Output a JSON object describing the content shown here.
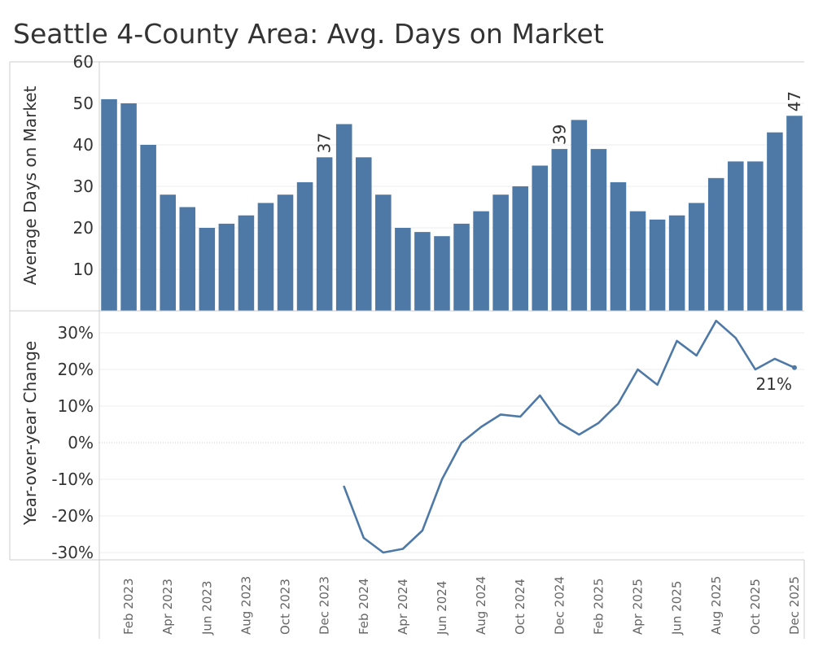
{
  "title": "Seattle 4-County Area: Avg. Days on Market",
  "colors": {
    "bar": "#4e79a7",
    "line": "#4e79a7",
    "grid": "#eeeeee",
    "axis": "#cccccc",
    "text": "#333333"
  },
  "chart_data": [
    {
      "type": "bar",
      "title": "Seattle 4-County Area: Avg. Days on Market",
      "ylabel": "Average Days on Market",
      "ylim": [
        0,
        60
      ],
      "yticks": [
        10,
        20,
        30,
        40,
        50,
        60
      ],
      "categories": [
        "Jan 2023",
        "Feb 2023",
        "Mar 2023",
        "Apr 2023",
        "May 2023",
        "Jun 2023",
        "Jul 2023",
        "Aug 2023",
        "Sep 2023",
        "Oct 2023",
        "Nov 2023",
        "Dec 2023",
        "Jan 2024",
        "Feb 2024",
        "Mar 2024",
        "Apr 2024",
        "May 2024",
        "Jun 2024",
        "Jul 2024",
        "Aug 2024",
        "Sep 2024",
        "Oct 2024",
        "Nov 2024",
        "Dec 2024",
        "Jan 2025",
        "Feb 2025",
        "Mar 2025",
        "Apr 2025",
        "May 2025",
        "Jun 2025",
        "Jul 2025",
        "Aug 2025",
        "Sep 2025",
        "Oct 2025",
        "Nov 2025",
        "Dec 2025"
      ],
      "values": [
        51,
        50,
        40,
        28,
        25,
        20,
        21,
        23,
        26,
        28,
        31,
        37,
        45,
        37,
        28,
        20,
        19,
        18,
        21,
        24,
        28,
        30,
        35,
        39,
        46,
        39,
        31,
        24,
        22,
        23,
        26,
        32,
        36,
        36,
        43,
        47
      ],
      "labeled": [
        {
          "index": 11,
          "text": "37"
        },
        {
          "index": 23,
          "text": "39"
        },
        {
          "index": 35,
          "text": "47"
        }
      ]
    },
    {
      "type": "line",
      "ylabel": "Year-over-year Change",
      "ylim": [
        -32,
        36
      ],
      "yticks": [
        -30,
        -20,
        -10,
        0,
        10,
        20,
        30
      ],
      "ytick_labels": [
        "-30%",
        "-20%",
        "-10%",
        "0%",
        "10%",
        "20%",
        "30%"
      ],
      "values": [
        null,
        null,
        null,
        null,
        null,
        null,
        null,
        null,
        null,
        null,
        null,
        null,
        -12,
        -26,
        -30,
        -29,
        -24,
        -10,
        0,
        4.3,
        7.7,
        7.1,
        12.9,
        5.4,
        2.2,
        5.4,
        10.7,
        20,
        15.8,
        27.8,
        23.8,
        33.3,
        28.6,
        20,
        22.9,
        20.5
      ],
      "end_label": "21%"
    }
  ],
  "x_axis": {
    "tick_labels": [
      {
        "index": 1,
        "text": "Feb 2023"
      },
      {
        "index": 3,
        "text": "Apr 2023"
      },
      {
        "index": 5,
        "text": "Jun 2023"
      },
      {
        "index": 7,
        "text": "Aug 2023"
      },
      {
        "index": 9,
        "text": "Oct 2023"
      },
      {
        "index": 11,
        "text": "Dec 2023"
      },
      {
        "index": 13,
        "text": "Feb 2024"
      },
      {
        "index": 15,
        "text": "Apr 2024"
      },
      {
        "index": 17,
        "text": "Jun 2024"
      },
      {
        "index": 19,
        "text": "Aug 2024"
      },
      {
        "index": 21,
        "text": "Oct 2024"
      },
      {
        "index": 23,
        "text": "Dec 2024"
      },
      {
        "index": 25,
        "text": "Feb 2025"
      },
      {
        "index": 27,
        "text": "Apr 2025"
      },
      {
        "index": 29,
        "text": "Jun 2025"
      },
      {
        "index": 31,
        "text": "Aug 2025"
      },
      {
        "index": 33,
        "text": "Oct 2025"
      },
      {
        "index": 35,
        "text": "Dec 2025"
      }
    ]
  }
}
